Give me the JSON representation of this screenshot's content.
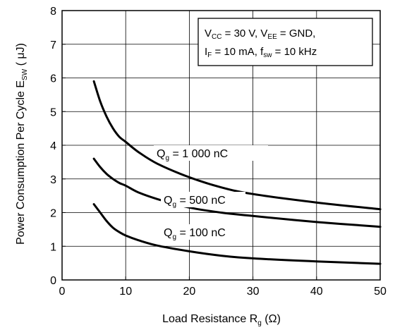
{
  "chart_data": {
    "type": "line",
    "xlabel": {
      "main": "Load Resistance  R",
      "sub": "g",
      "tail": " (Ω)"
    },
    "ylabel": {
      "main": "Power Consumption Per Cycle E",
      "sub": "SW",
      "tail": " ( μJ)"
    },
    "xlim": [
      0,
      50
    ],
    "ylim": [
      0,
      8
    ],
    "xticks": [
      0,
      10,
      20,
      30,
      40,
      50
    ],
    "yticks": [
      0,
      1,
      2,
      3,
      4,
      5,
      6,
      7,
      8
    ],
    "grid": true,
    "conditions": {
      "line1": "VCC = 30 V, VEE = GND,",
      "line2": "IF = 10 mA, fsw = 10 kHz"
    },
    "series": [
      {
        "name": "Qg = 1 000 nC",
        "label": {
          "q": "Q",
          "sub": "g",
          "rest": " = 1 000 nC"
        },
        "x": [
          5,
          6,
          7,
          8,
          9,
          10,
          12,
          15,
          20,
          25,
          30,
          40,
          50
        ],
        "y": [
          5.9,
          5.3,
          4.85,
          4.5,
          4.25,
          4.1,
          3.8,
          3.45,
          3.05,
          2.75,
          2.55,
          2.3,
          2.1
        ]
      },
      {
        "name": "Qg = 500 nC",
        "label": {
          "q": "Q",
          "sub": "g",
          "rest": " = 500 nC"
        },
        "x": [
          5,
          6,
          7,
          8,
          9,
          10,
          12,
          15,
          20,
          25,
          30,
          40,
          50
        ],
        "y": [
          3.6,
          3.35,
          3.15,
          3.0,
          2.88,
          2.8,
          2.6,
          2.4,
          2.15,
          2.0,
          1.9,
          1.72,
          1.58
        ]
      },
      {
        "name": "Qg = 100 nC",
        "label": {
          "q": "Q",
          "sub": "g",
          "rest": " = 100 nC"
        },
        "x": [
          5,
          6,
          7,
          8,
          9,
          10,
          12,
          15,
          20,
          25,
          30,
          40,
          50
        ],
        "y": [
          2.25,
          2.0,
          1.75,
          1.55,
          1.42,
          1.32,
          1.18,
          1.02,
          0.85,
          0.72,
          0.64,
          0.55,
          0.48
        ]
      }
    ]
  }
}
